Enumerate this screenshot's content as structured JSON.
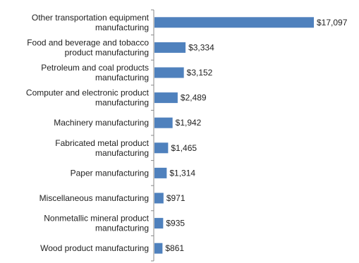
{
  "chart_data": {
    "type": "bar",
    "orientation": "horizontal",
    "categories": [
      [
        "Other transportation equipment",
        "manufacturing"
      ],
      [
        "Food and beverage and tobacco",
        "product manufacturing"
      ],
      [
        "Petroleum and coal products",
        "manufacturing"
      ],
      [
        "Computer and electronic product",
        "manufacturing"
      ],
      [
        "Machinery manufacturing"
      ],
      [
        "Fabricated metal product",
        "manufacturing"
      ],
      [
        "Paper manufacturing"
      ],
      [
        "Miscellaneous manufacturing"
      ],
      [
        "Nonmetallic mineral product",
        "manufacturing"
      ],
      [
        "Wood product manufacturing"
      ]
    ],
    "values": [
      17097,
      3334,
      3152,
      2489,
      1942,
      1465,
      1314,
      971,
      935,
      861
    ],
    "value_labels": [
      "$17,097",
      "$3,334",
      "$3,152",
      "$2,489",
      "$1,942",
      "$1,465",
      "$1,314",
      "$971",
      "$935",
      "$861"
    ],
    "xlim": [
      0,
      17097
    ],
    "title": "",
    "xlabel": "",
    "ylabel": "",
    "grid": false,
    "legend": "none",
    "bar_color": "#4f81bd",
    "axis_color": "#888888"
  }
}
